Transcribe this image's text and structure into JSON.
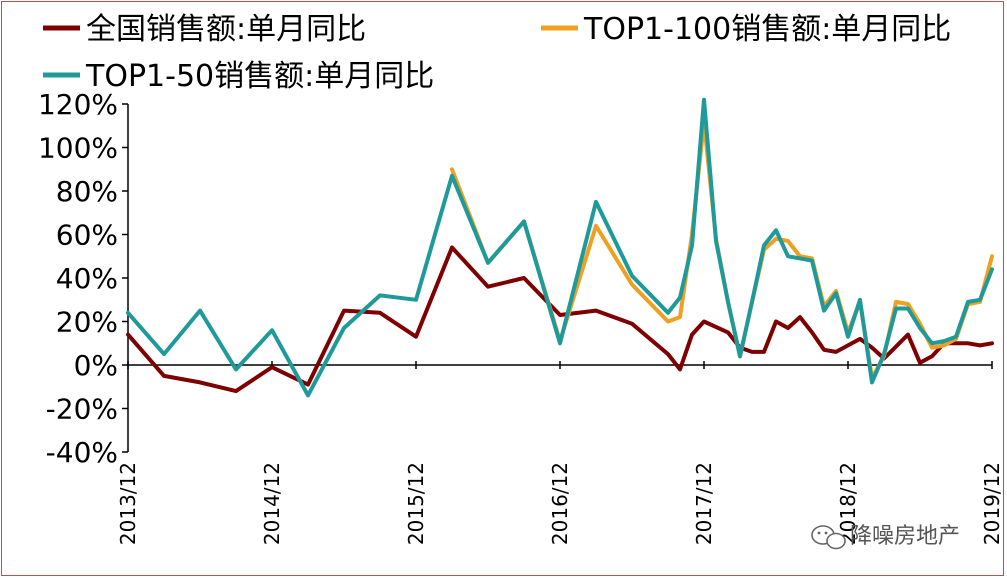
{
  "chart_data": {
    "type": "line",
    "title": "",
    "xlabel": "",
    "ylabel": "",
    "ylim": [
      -40,
      120
    ],
    "yticks": [
      120,
      100,
      80,
      60,
      40,
      20,
      0,
      -20,
      -40
    ],
    "ytick_labels": [
      "120%",
      "100%",
      "80%",
      "60%",
      "40%",
      "20%",
      "0%",
      "-20%",
      "-40%"
    ],
    "xtick_labels": [
      "2013/12",
      "2014/12",
      "2015/12",
      "2016/12",
      "2017/12",
      "2018/12",
      "2019/12"
    ],
    "x_unit": "months since 2013/12",
    "grid": false,
    "legend": "top",
    "series": [
      {
        "name": "全国销售额:单月同比",
        "color": "#7f0000",
        "points": [
          [
            0,
            14
          ],
          [
            3,
            -5
          ],
          [
            6,
            -8
          ],
          [
            9,
            -12
          ],
          [
            12,
            -1
          ],
          [
            15,
            -9
          ],
          [
            18,
            25
          ],
          [
            21,
            24
          ],
          [
            24,
            13
          ],
          [
            27,
            54
          ],
          [
            30,
            36
          ],
          [
            33,
            40
          ],
          [
            36,
            23
          ],
          [
            39,
            25
          ],
          [
            42,
            19
          ],
          [
            45,
            5
          ],
          [
            46,
            -2
          ],
          [
            47,
            14
          ],
          [
            48,
            20
          ],
          [
            50,
            15
          ],
          [
            51,
            8
          ],
          [
            52,
            6
          ],
          [
            53,
            6
          ],
          [
            54,
            20
          ],
          [
            55,
            17
          ],
          [
            56,
            22
          ],
          [
            57,
            15
          ],
          [
            58,
            7
          ],
          [
            59,
            6
          ],
          [
            61,
            12
          ],
          [
            62,
            8
          ],
          [
            63,
            3
          ],
          [
            65,
            14
          ],
          [
            66,
            1
          ],
          [
            67,
            4
          ],
          [
            68,
            10
          ],
          [
            69,
            10
          ],
          [
            70,
            10
          ],
          [
            71,
            9
          ],
          [
            72,
            10
          ]
        ]
      },
      {
        "name": "TOP1-100销售额:单月同比",
        "color": "#f0a020",
        "points": [
          [
            27,
            90
          ],
          [
            30,
            47
          ],
          [
            33,
            66
          ],
          [
            36,
            11
          ],
          [
            39,
            64
          ],
          [
            42,
            37
          ],
          [
            45,
            20
          ],
          [
            46,
            22
          ],
          [
            47,
            60
          ],
          [
            48,
            112
          ],
          [
            49,
            58
          ],
          [
            50,
            29
          ],
          [
            51,
            4
          ],
          [
            52,
            29
          ],
          [
            53,
            53
          ],
          [
            54,
            58
          ],
          [
            55,
            57
          ],
          [
            56,
            50
          ],
          [
            57,
            49
          ],
          [
            58,
            27
          ],
          [
            59,
            34
          ],
          [
            60,
            15
          ],
          [
            61,
            29
          ],
          [
            62,
            -6
          ],
          [
            63,
            4
          ],
          [
            64,
            29
          ],
          [
            65,
            28
          ],
          [
            66,
            19
          ],
          [
            67,
            8
          ],
          [
            68,
            9
          ],
          [
            69,
            12
          ],
          [
            70,
            28
          ],
          [
            71,
            29
          ],
          [
            72,
            50
          ]
        ]
      },
      {
        "name": "TOP1-50销售额:单月同比",
        "color": "#1f9a9a",
        "points": [
          [
            0,
            24
          ],
          [
            3,
            5
          ],
          [
            6,
            25
          ],
          [
            9,
            -2
          ],
          [
            12,
            16
          ],
          [
            15,
            -14
          ],
          [
            18,
            17
          ],
          [
            21,
            32
          ],
          [
            24,
            30
          ],
          [
            27,
            87
          ],
          [
            30,
            47
          ],
          [
            33,
            66
          ],
          [
            36,
            10
          ],
          [
            39,
            75
          ],
          [
            42,
            41
          ],
          [
            45,
            24
          ],
          [
            46,
            31
          ],
          [
            47,
            55
          ],
          [
            48,
            122
          ],
          [
            49,
            57
          ],
          [
            50,
            29
          ],
          [
            51,
            4
          ],
          [
            52,
            29
          ],
          [
            53,
            55
          ],
          [
            54,
            62
          ],
          [
            55,
            50
          ],
          [
            56,
            49
          ],
          [
            57,
            48
          ],
          [
            58,
            25
          ],
          [
            59,
            33
          ],
          [
            60,
            13
          ],
          [
            61,
            30
          ],
          [
            62,
            -8
          ],
          [
            63,
            5
          ],
          [
            64,
            26
          ],
          [
            65,
            26
          ],
          [
            66,
            17
          ],
          [
            67,
            10
          ],
          [
            68,
            11
          ],
          [
            69,
            13
          ],
          [
            70,
            29
          ],
          [
            71,
            30
          ],
          [
            72,
            44
          ]
        ]
      }
    ]
  },
  "watermark": {
    "icon": "wechat-icon",
    "text": "降噪房地产"
  }
}
